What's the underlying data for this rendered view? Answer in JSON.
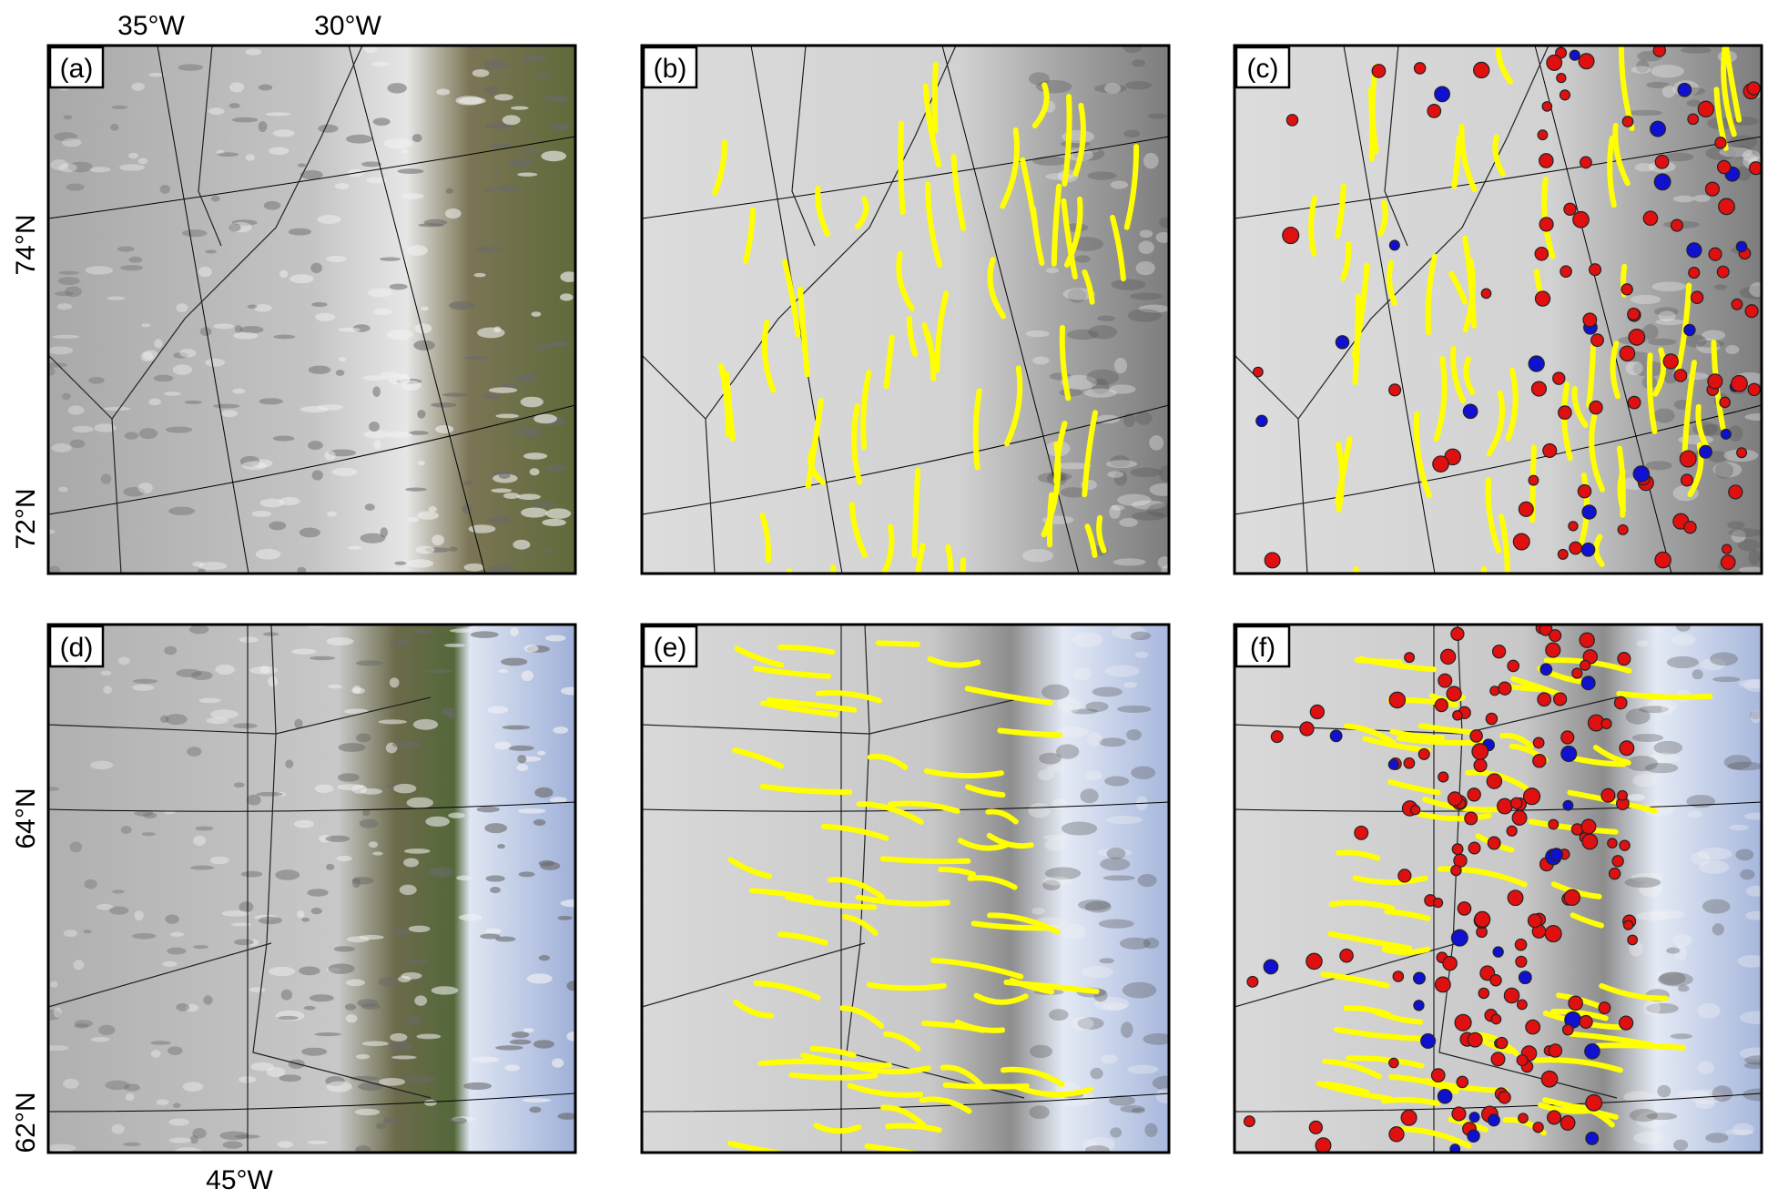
{
  "axis_labels": {
    "top_lon": [
      "35°W",
      "30°W"
    ],
    "left_lat_top": [
      "74°N",
      "72°N"
    ],
    "left_lat_bottom": [
      "64°N",
      "62°N"
    ],
    "bottom_lon": [
      "45°W"
    ]
  },
  "panels": [
    {
      "label": "(a)"
    },
    {
      "label": "(b)"
    },
    {
      "label": "(c)"
    },
    {
      "label": "(d)"
    },
    {
      "label": "(e)"
    },
    {
      "label": "(f)"
    }
  ]
}
